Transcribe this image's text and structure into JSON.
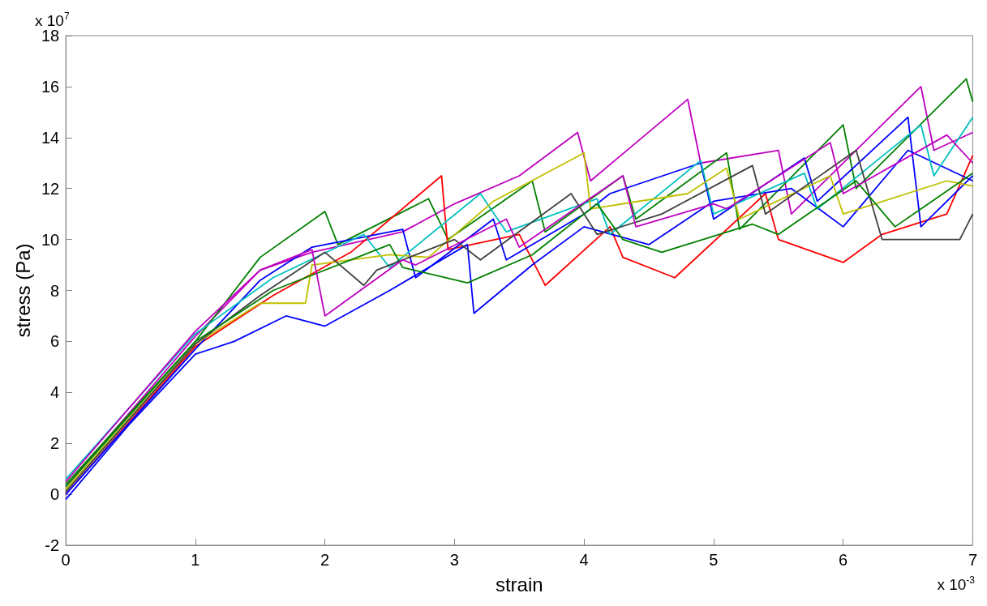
{
  "chart_data": {
    "type": "line",
    "xlabel": "strain",
    "ylabel": "stress (Pa)",
    "xlim": [
      0,
      7
    ],
    "xticks": [
      0,
      1,
      2,
      3,
      4,
      5,
      6,
      7
    ],
    "ylim": [
      -2,
      18
    ],
    "yticks": [
      -2,
      0,
      2,
      4,
      6,
      8,
      10,
      12,
      14,
      16,
      18
    ],
    "annotations": [
      "x 10$^{7}$",
      "x 10$^{-3}$"
    ],
    "series": [
      {
        "color": "#bf00bf",
        "x": [
          0,
          1,
          1.5,
          1.9,
          2.6,
          3.0,
          3.5,
          3.95,
          4.05,
          4.8,
          4.9,
          5.5,
          5.6,
          6.6,
          6.7,
          7
        ],
        "values": [
          0.3,
          6.2,
          8.8,
          9.5,
          10.3,
          11.4,
          12.5,
          14.2,
          12.3,
          15.5,
          13.0,
          13.5,
          11.0,
          16.0,
          13.5,
          14.2
        ]
      },
      {
        "color": "#008000",
        "x": [
          0,
          1,
          1.5,
          2.0,
          2.1,
          2.8,
          2.95,
          3.6,
          3.7,
          4.3,
          4.4,
          5.1,
          5.2,
          6.0,
          6.1,
          6.95,
          7
        ],
        "values": [
          0.4,
          6.0,
          9.3,
          11.1,
          9.8,
          11.6,
          10.0,
          12.3,
          10.3,
          12.5,
          10.8,
          13.4,
          10.4,
          14.5,
          12.0,
          16.3,
          15.4
        ]
      },
      {
        "color": "#ff0000",
        "x": [
          0,
          1,
          1.6,
          2.2,
          2.9,
          2.95,
          3.5,
          3.7,
          4.2,
          4.3,
          4.7,
          5.4,
          5.5,
          6.0,
          6.3,
          6.8,
          7
        ],
        "values": [
          0,
          5.8,
          7.8,
          9.5,
          12.5,
          9.6,
          10.2,
          8.2,
          10.5,
          9.3,
          8.5,
          11.8,
          10.0,
          9.1,
          10.2,
          11.0,
          13.3
        ]
      },
      {
        "color": "#0000ff",
        "x": [
          0,
          0.5,
          1,
          1.3,
          1.7,
          2.0,
          2.5,
          3.1,
          3.15,
          3.6,
          4.0,
          4.5,
          5.0,
          5.6,
          6.0,
          6.5,
          7
        ],
        "values": [
          -0.2,
          2.8,
          5.5,
          6.0,
          7.0,
          6.6,
          8.0,
          9.8,
          7.1,
          9.0,
          10.5,
          9.8,
          11.5,
          12.0,
          10.5,
          13.5,
          12.3
        ]
      },
      {
        "color": "#0000ff",
        "x": [
          0,
          1,
          1.5,
          1.9,
          2.6,
          2.7,
          3.3,
          3.4,
          4.0,
          4.2,
          4.9,
          5.0,
          5.7,
          5.8,
          6.5,
          6.6,
          7
        ],
        "values": [
          0,
          5.7,
          8.4,
          9.7,
          10.4,
          8.5,
          10.8,
          9.2,
          11.0,
          11.8,
          13.0,
          10.8,
          13.2,
          11.5,
          14.8,
          10.5,
          12.5
        ]
      },
      {
        "color": "#00bfbf",
        "x": [
          0,
          1,
          1.6,
          2.3,
          2.5,
          3.2,
          3.4,
          4.1,
          4.2,
          4.9,
          5.0,
          5.7,
          5.8,
          6.6,
          6.7,
          7
        ],
        "values": [
          0.6,
          6.3,
          8.5,
          10.2,
          8.9,
          11.8,
          10.3,
          11.6,
          10.2,
          13.1,
          11.0,
          12.6,
          11.2,
          14.5,
          12.5,
          14.8
        ]
      },
      {
        "color": "#bfbf00",
        "x": [
          0,
          1,
          1.5,
          1.85,
          1.9,
          2.5,
          2.8,
          3.3,
          4.0,
          4.05,
          4.8,
          5.1,
          5.2,
          5.9,
          6.0,
          6.8,
          7
        ],
        "values": [
          0.2,
          5.9,
          7.5,
          7.5,
          9.0,
          9.4,
          9.3,
          11.5,
          13.4,
          11.2,
          11.8,
          12.8,
          10.8,
          12.5,
          11.0,
          12.3,
          12.1
        ]
      },
      {
        "color": "#404040",
        "x": [
          0,
          1,
          1.5,
          2.0,
          2.3,
          2.4,
          3.0,
          3.2,
          3.9,
          4.1,
          4.6,
          5.3,
          5.4,
          6.1,
          6.3,
          6.9,
          7
        ],
        "values": [
          0.1,
          5.9,
          7.8,
          9.5,
          8.2,
          8.8,
          10.0,
          9.2,
          11.8,
          10.2,
          11.0,
          12.9,
          11.0,
          13.5,
          10.0,
          10.0,
          11.0
        ]
      },
      {
        "color": "#008000",
        "x": [
          0,
          1,
          1.6,
          2.5,
          2.6,
          3.1,
          3.6,
          4.1,
          4.3,
          4.6,
          5.3,
          5.5,
          6.1,
          6.4,
          7
        ],
        "values": [
          0.3,
          6.0,
          8.0,
          9.8,
          8.9,
          8.3,
          9.4,
          11.4,
          10.0,
          9.5,
          10.6,
          10.2,
          12.3,
          10.5,
          12.6
        ]
      },
      {
        "color": "#bf00bf",
        "x": [
          0,
          1,
          1.5,
          1.9,
          2.0,
          2.6,
          2.7,
          3.4,
          3.5,
          4.3,
          4.4,
          5.0,
          5.1,
          5.9,
          6.0,
          6.8,
          7
        ],
        "values": [
          0.5,
          6.4,
          8.8,
          9.6,
          7.0,
          9.2,
          9.0,
          10.8,
          9.7,
          12.5,
          10.5,
          11.4,
          11.2,
          13.8,
          11.8,
          14.1,
          13.0
        ]
      }
    ]
  }
}
